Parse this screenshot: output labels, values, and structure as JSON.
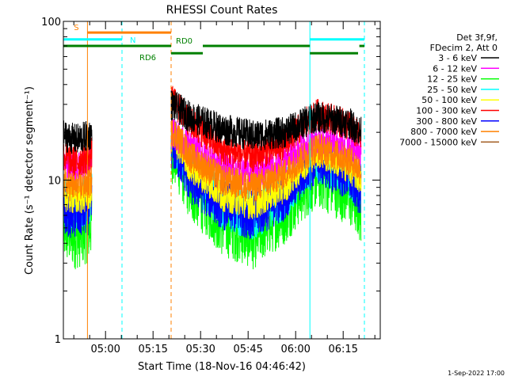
{
  "chart_data": {
    "type": "line",
    "title": "RHESSI Count Rates",
    "xlabel": "Start Time (18-Nov-16 04:46:42)",
    "ylabel": "Count Rate (s⁻¹ detector segment⁻¹)",
    "yscale": "log",
    "ylim": [
      1,
      100
    ],
    "xlim_minutes": [
      0,
      100
    ],
    "y_tick_labels": [
      {
        "value": 1,
        "label": "1"
      },
      {
        "value": 10,
        "label": "10"
      },
      {
        "value": 100,
        "label": "100"
      }
    ],
    "x_ticks": [
      {
        "t": 13.3,
        "label": "05:00"
      },
      {
        "t": 28.3,
        "label": "05:15"
      },
      {
        "t": 43.3,
        "label": "05:30"
      },
      {
        "t": 58.3,
        "label": "05:45"
      },
      {
        "t": 73.3,
        "label": "06:00"
      },
      {
        "t": 88.3,
        "label": "06:15"
      }
    ],
    "legend_header": [
      "Det 3f,9f,",
      "FDecim 2, Att 0"
    ],
    "series": [
      {
        "name": "3 - 6 keV",
        "color": "#000000",
        "t": [
          0,
          4,
          8,
          9,
          34,
          40,
          50,
          60,
          70,
          80,
          90,
          94
        ],
        "values": [
          19,
          18,
          19,
          20,
          30,
          25,
          21,
          19,
          20,
          25,
          23,
          20
        ]
      },
      {
        "name": "6 - 12 keV",
        "color": "#ff00ff",
        "t": [
          0,
          4,
          8,
          9,
          34,
          40,
          50,
          60,
          70,
          80,
          90,
          94
        ],
        "values": [
          13,
          12,
          13,
          14,
          20,
          16,
          12.5,
          11,
          13,
          18,
          16,
          14
        ]
      },
      {
        "name": "12 - 25 keV",
        "color": "#00ff00",
        "t": [
          0,
          4,
          8,
          9,
          34,
          40,
          50,
          60,
          70,
          80,
          90,
          94
        ],
        "values": [
          5,
          4.5,
          5,
          5.5,
          16,
          9,
          5.5,
          4.5,
          6.5,
          11,
          8.5,
          6.5
        ]
      },
      {
        "name": "25 - 50 keV",
        "color": "#00ffff",
        "t": [
          0,
          4,
          8,
          9,
          34,
          40,
          50,
          60,
          70,
          80,
          90,
          94
        ],
        "values": [
          7.5,
          7,
          7.5,
          8,
          18,
          11,
          7,
          6,
          8,
          14,
          11,
          9
        ]
      },
      {
        "name": "50 - 100 keV",
        "color": "#ffff00",
        "t": [
          0,
          4,
          8,
          9,
          34,
          40,
          50,
          60,
          70,
          80,
          90,
          94
        ],
        "values": [
          8,
          7.5,
          8,
          8.5,
          19,
          12,
          8,
          7,
          9,
          15,
          12,
          10
        ]
      },
      {
        "name": "100 - 300 keV",
        "color": "#ff0000",
        "t": [
          0,
          4,
          8,
          9,
          34,
          40,
          50,
          60,
          70,
          80,
          90,
          94
        ],
        "values": [
          14,
          13,
          14,
          15,
          32,
          23,
          15.5,
          14,
          17,
          26,
          22,
          18
        ]
      },
      {
        "name": "300 - 800 keV",
        "color": "#0000ff",
        "t": [
          0,
          4,
          8,
          9,
          34,
          40,
          50,
          60,
          70,
          80,
          90,
          94
        ],
        "values": [
          6.5,
          6,
          6.5,
          7,
          17,
          10,
          7,
          6,
          8,
          13.5,
          10.5,
          8.5
        ]
      },
      {
        "name": "800 - 7000 keV",
        "color": "#ff8000",
        "t": [
          0,
          4,
          8,
          9,
          34,
          40,
          50,
          60,
          70,
          80,
          90,
          94
        ],
        "values": [
          9.5,
          9,
          9.5,
          10,
          21,
          14,
          10,
          9,
          11,
          16,
          13.5,
          11.5
        ]
      },
      {
        "name": "7000 - 15000 keV",
        "color": "#a05a1e",
        "t": [],
        "values": []
      }
    ],
    "gaps_minutes": [
      [
        9,
        34
      ]
    ],
    "state_bars": [
      {
        "label": "S",
        "color": "#ff8000",
        "level": 85,
        "segments": [
          [
            7.6,
            34
          ]
        ]
      },
      {
        "label": "N",
        "color": "#00ffff",
        "level": 77,
        "segments": [
          [
            0,
            18.5
          ],
          [
            77.8,
            95
          ]
        ]
      },
      {
        "label": "RD0",
        "color": "#008000",
        "level": 70,
        "segments": [
          [
            0,
            34
          ],
          [
            44,
            77.8
          ],
          [
            93.4,
            95
          ]
        ]
      },
      {
        "label": "RD6",
        "color": "#008000",
        "level": 63,
        "segments": [
          [
            34,
            44
          ],
          [
            77.8,
            93
          ]
        ]
      }
    ],
    "vertical_lines": [
      {
        "t": 0,
        "color": "#00ffff",
        "style": "solid"
      },
      {
        "t": 7.6,
        "color": "#ff8000",
        "style": "solid"
      },
      {
        "t": 18.5,
        "color": "#00ffff",
        "style": "dashed"
      },
      {
        "t": 34,
        "color": "#ff8000",
        "style": "dashed"
      },
      {
        "t": 77.8,
        "color": "#00ffff",
        "style": "solid"
      },
      {
        "t": 95,
        "color": "#00ffff",
        "style": "dashed"
      }
    ],
    "footer": "1-Sep-2022 17:00"
  }
}
